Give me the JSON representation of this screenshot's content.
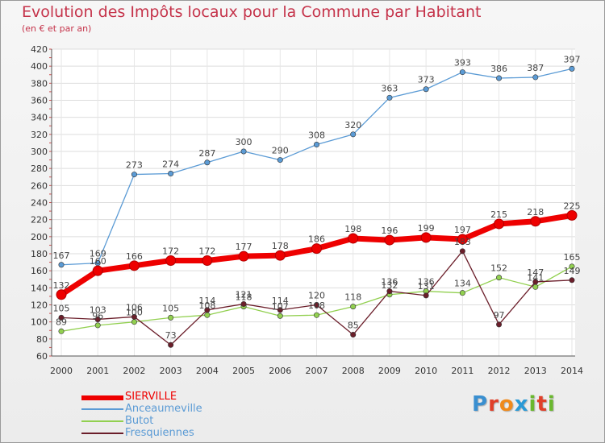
{
  "header": {
    "title": "Evolution des Impôts locaux pour la Commune par Habitant",
    "subtitle": "(en € et par an)"
  },
  "logo": {
    "letters": [
      "P",
      "r",
      "o",
      "x",
      "i",
      "t",
      "i"
    ],
    "colors": [
      "#3a8fd0",
      "#e0402a",
      "#f08a1c",
      "#2a9ad6",
      "#6ab82e",
      "#e0402a",
      "#6ab82e"
    ]
  },
  "chart_data": {
    "type": "line",
    "title": "Evolution des Impôts locaux pour la Commune par Habitant",
    "subtitle": "(en € et par an)",
    "xlabel": "",
    "ylabel": "",
    "ylim": [
      60,
      420
    ],
    "yticks": [
      60,
      80,
      100,
      120,
      140,
      160,
      180,
      200,
      220,
      240,
      260,
      280,
      300,
      320,
      340,
      360,
      380,
      400,
      420
    ],
    "grid": true,
    "legend_position": "bottom-left",
    "x": [
      2000,
      2001,
      2002,
      2003,
      2004,
      2005,
      2006,
      2007,
      2008,
      2009,
      2010,
      2011,
      2012,
      2013,
      2014
    ],
    "series": [
      {
        "name": "SIERVILLE",
        "color": "#ee0000",
        "values": [
          132,
          160,
          166,
          172,
          172,
          177,
          178,
          186,
          198,
          196,
          199,
          197,
          215,
          218,
          225
        ],
        "labels": [
          "132",
          "160",
          "166",
          "172",
          "172",
          "177",
          "178",
          "186",
          "198",
          "196",
          "199",
          "197",
          "215",
          "218",
          "225"
        ]
      },
      {
        "name": "Anceaumeville",
        "color": "#5b9bd5",
        "values": [
          167,
          169,
          273,
          274,
          287,
          300,
          290,
          308,
          320,
          363,
          373,
          393,
          386,
          387,
          397
        ],
        "labels": [
          "167",
          "169",
          "273",
          "274",
          "287",
          "300",
          "290",
          "308",
          "320",
          "363",
          "373",
          "393",
          "386",
          "387",
          "397"
        ]
      },
      {
        "name": "Butot",
        "color": "#92d050",
        "values": [
          89,
          96,
          100,
          105,
          108,
          118,
          107,
          108,
          118,
          132,
          136,
          134,
          152,
          141,
          165
        ],
        "labels": [
          "89",
          "96",
          "100",
          "105",
          "108",
          "118",
          "107",
          "108",
          "118",
          "132",
          "136",
          "134",
          "152",
          "141",
          "165"
        ]
      },
      {
        "name": "Fresquiennes",
        "color": "#6b1e2a",
        "values": [
          105,
          103,
          106,
          73,
          114,
          121,
          114,
          120,
          85,
          136,
          131,
          183,
          97,
          147,
          149
        ],
        "labels": [
          "105",
          "103",
          "106",
          "73",
          "114",
          "121",
          "114",
          "120",
          "85",
          "136",
          "131",
          "183",
          "97",
          "147",
          "149"
        ]
      }
    ]
  }
}
